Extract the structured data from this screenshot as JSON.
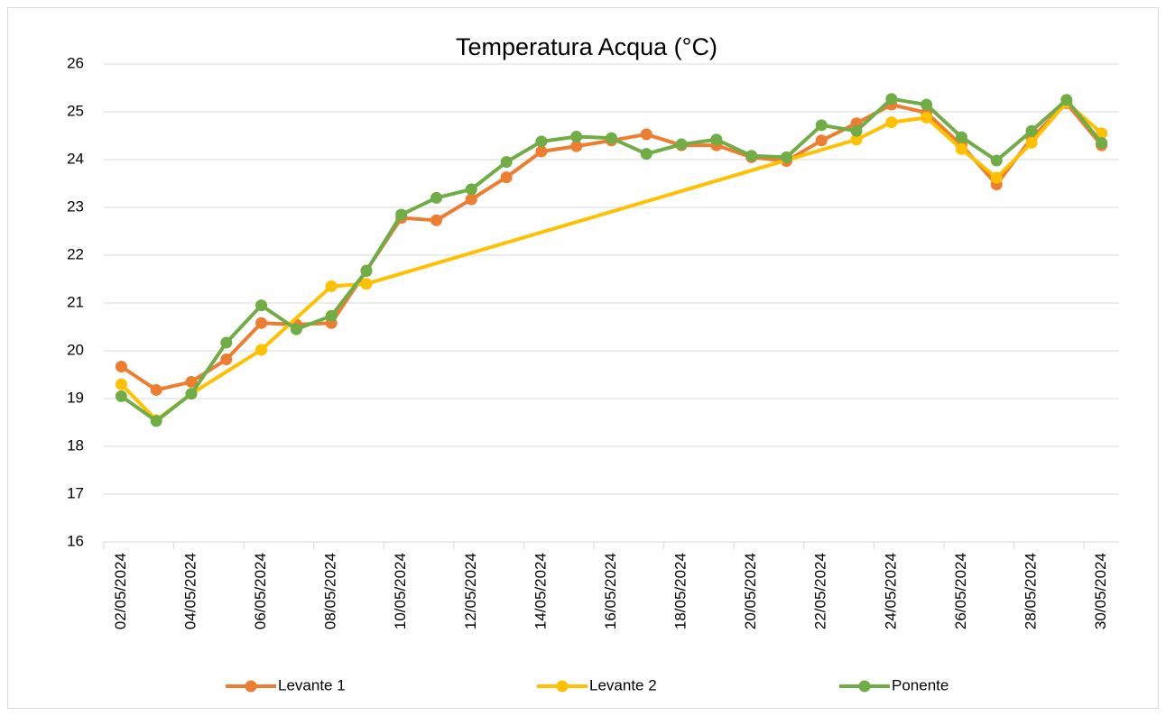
{
  "chart_data": {
    "type": "line",
    "title": "Temperatura Acqua (°C)",
    "categories": [
      "02/05/2024",
      null,
      "04/05/2024",
      null,
      "06/05/2024",
      null,
      "08/05/2024",
      null,
      "10/05/2024",
      null,
      "12/05/2024",
      null,
      "14/05/2024",
      null,
      "16/05/2024",
      null,
      "18/05/2024",
      null,
      "20/05/2024",
      null,
      "22/05/2024",
      null,
      "24/05/2024",
      null,
      "26/05/2024",
      null,
      "28/05/2024",
      null,
      "30/05/2024"
    ],
    "series": [
      {
        "name": "Levante 1",
        "color": "#ED7D31",
        "values": [
          19.67,
          19.18,
          19.35,
          19.82,
          20.58,
          20.55,
          20.58,
          21.68,
          22.78,
          22.73,
          23.17,
          23.63,
          24.17,
          24.28,
          24.4,
          24.53,
          24.3,
          24.3,
          24.05,
          23.97,
          24.4,
          24.76,
          25.15,
          24.98,
          24.3,
          23.48,
          24.45,
          25.18,
          24.3
        ]
      },
      {
        "name": "Levante 2",
        "color": "#FFC000",
        "values": [
          19.3,
          18.55,
          19.1,
          null,
          20.02,
          null,
          21.35,
          21.4,
          null,
          null,
          null,
          null,
          null,
          null,
          null,
          null,
          null,
          null,
          null,
          null,
          null,
          24.42,
          24.78,
          24.88,
          24.22,
          23.62,
          24.35,
          25.2,
          24.55
        ]
      },
      {
        "name": "Ponente",
        "color": "#70AD47",
        "values": [
          19.05,
          18.53,
          19.1,
          20.17,
          20.95,
          20.45,
          20.73,
          21.67,
          22.85,
          23.2,
          23.38,
          23.95,
          24.38,
          24.48,
          24.45,
          24.12,
          24.32,
          24.42,
          24.08,
          24.05,
          24.72,
          24.6,
          25.27,
          25.15,
          24.47,
          23.98,
          24.6,
          25.25,
          24.35
        ]
      }
    ],
    "ylim": [
      16,
      26
    ],
    "yticks": [
      16,
      17,
      18,
      19,
      20,
      21,
      22,
      23,
      24,
      25,
      26
    ],
    "grid": true,
    "connect_gaps": true,
    "legend": "bottom"
  }
}
